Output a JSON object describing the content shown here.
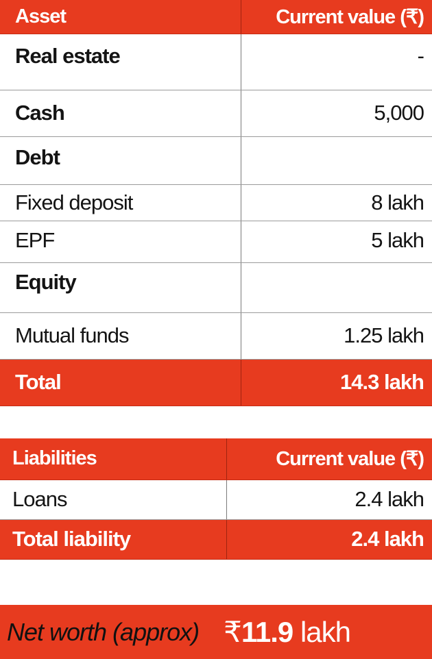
{
  "assets": {
    "header": {
      "label": "Asset",
      "value": "Current value (₹)"
    },
    "rows": [
      {
        "label": "Real estate",
        "value": "-"
      },
      {
        "label": "Cash",
        "value": "5,000"
      },
      {
        "label": "Debt",
        "value": ""
      },
      {
        "label": "Fixed deposit",
        "value": "8 lakh"
      },
      {
        "label": "EPF",
        "value": "5 lakh"
      },
      {
        "label": "Equity",
        "value": ""
      },
      {
        "label": "Mutual funds",
        "value": "1.25 lakh"
      }
    ],
    "total": {
      "label": "Total",
      "value": "14.3 lakh"
    }
  },
  "liabilities": {
    "header": {
      "label": "Liabilities",
      "value": "Current value (₹)"
    },
    "rows": [
      {
        "label": "Loans",
        "value": "2.4 lakh"
      }
    ],
    "total": {
      "label": "Total liability",
      "value": "2.4 lakh"
    }
  },
  "net_worth": {
    "label": "Net worth (approx)",
    "currency": "₹",
    "amount": "11.9",
    "unit": " lakh"
  },
  "colors": {
    "accent": "#e73b1f",
    "text": "#141414",
    "rule": "#9a9a9a"
  }
}
